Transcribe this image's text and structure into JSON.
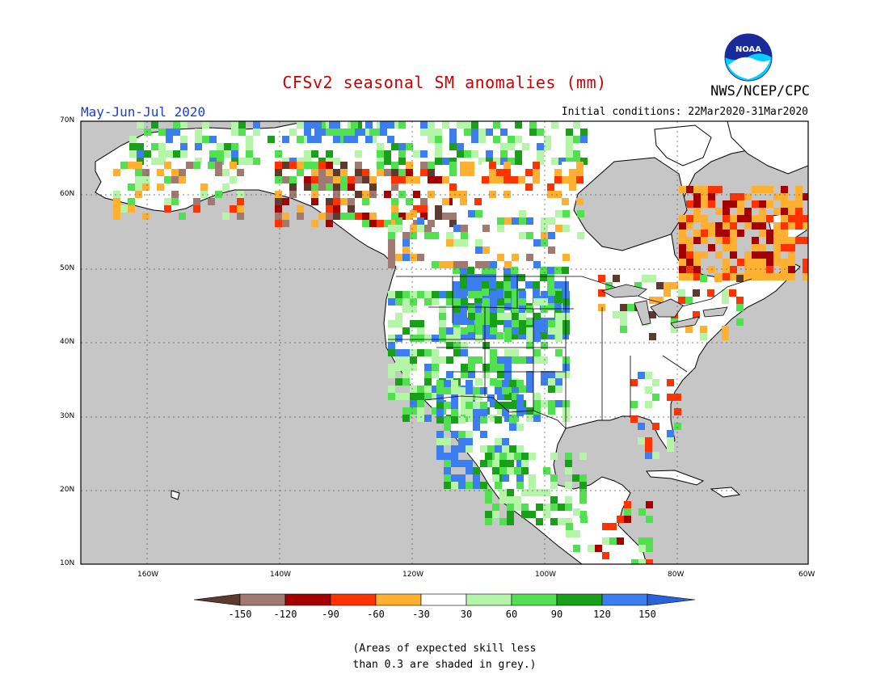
{
  "title": "CFSv2 seasonal SM anomalies (mm)",
  "agency": "NWS/NCEP/CPC",
  "period": "May-Jun-Jul 2020",
  "initial_conditions": "Initial conditions: 22Mar2020-31Mar2020",
  "logo_text": "NOAA",
  "note_line1": "(Areas of expected skill less",
  "note_line2": "than 0.3 are shaded in grey.)",
  "lat_labels": [
    "70N",
    "60N",
    "50N",
    "40N",
    "30N",
    "20N",
    "10N"
  ],
  "lon_labels": [
    "160W",
    "140W",
    "120W",
    "100W",
    "80W",
    "60W"
  ],
  "colorbar": {
    "ticks": [
      "-150",
      "-120",
      "-90",
      "-60",
      "-30",
      "30",
      "60",
      "90",
      "120",
      "150"
    ],
    "colors": [
      "#5c3a2e",
      "#a07a70",
      "#a50000",
      "#ff3300",
      "#ffb030",
      "#ffffff",
      "#b4f5a8",
      "#50e050",
      "#18a018",
      "#3c7df0",
      "#2a62d8"
    ]
  },
  "colors": {
    "land_grey": "#c6c6c6",
    "very_dry": "#5c3a2e",
    "dry_brown": "#a07a70",
    "dark_red": "#a50000",
    "red": "#ff3300",
    "orange": "#ffb030",
    "neutral": "#ffffff",
    "light_green": "#b4f5a8",
    "green": "#50e050",
    "dark_green": "#18a018",
    "blue": "#3c7df0"
  }
}
